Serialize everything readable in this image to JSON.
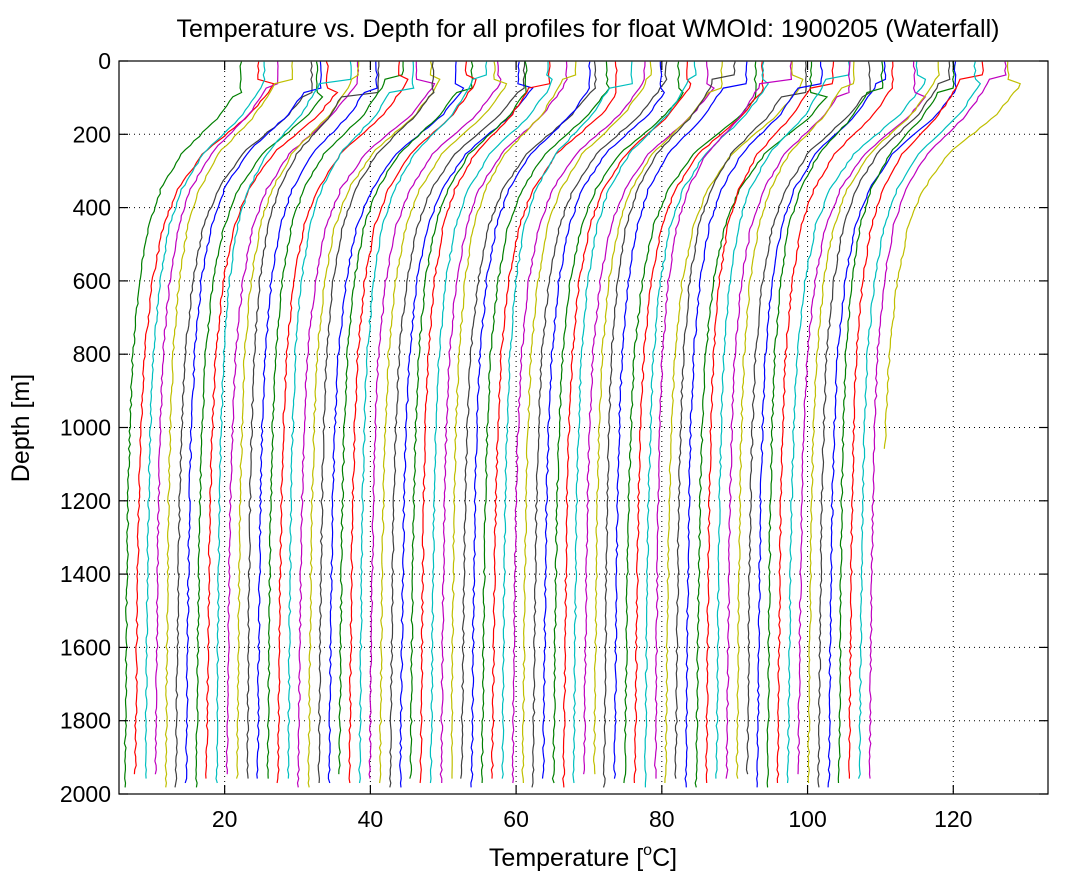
{
  "chart_data": {
    "type": "line",
    "title": "Temperature vs. Depth for all profiles for float WMOId: 1900205 (Waterfall)",
    "xlabel": "Temperature [",
    "xlabel_superscript": "o",
    "xlabel_suffix": "C]",
    "ylabel": "Depth [m]",
    "xlim": [
      5.5,
      133
    ],
    "ylim": [
      0,
      2000
    ],
    "y_reversed": true,
    "grid": true,
    "x_ticks": [
      20,
      40,
      60,
      80,
      100,
      120
    ],
    "x_tick_labels": [
      "20",
      "40",
      "60",
      "80",
      "100",
      "120"
    ],
    "y_ticks": [
      0,
      200,
      400,
      600,
      800,
      1000,
      1200,
      1400,
      1600,
      1800,
      2000
    ],
    "y_tick_labels": [
      "0",
      "200",
      "400",
      "600",
      "800",
      "1000",
      "1200",
      "1400",
      "1600",
      "1800",
      "2000"
    ],
    "colors": [
      "#007f00",
      "#ff0000",
      "#00bfbf",
      "#bf00bf",
      "#bfbf00",
      "#404040",
      "#0000ff"
    ],
    "profile_count": 75,
    "offset_per_profile_C": 1.4,
    "base_deep_temperature_C": 6.3,
    "profile_template": {
      "depth": [
        0,
        70,
        150,
        250,
        350,
        450,
        600,
        800,
        1000,
        1200,
        1500,
        1800,
        1980
      ],
      "temperature_anomaly": [
        17.2,
        16.0,
        13.2,
        8.0,
        5.0,
        3.3,
        2.0,
        1.1,
        0.7,
        0.45,
        0.25,
        0.1,
        0.0
      ]
    },
    "last_profile_max_depth": 1060
  }
}
